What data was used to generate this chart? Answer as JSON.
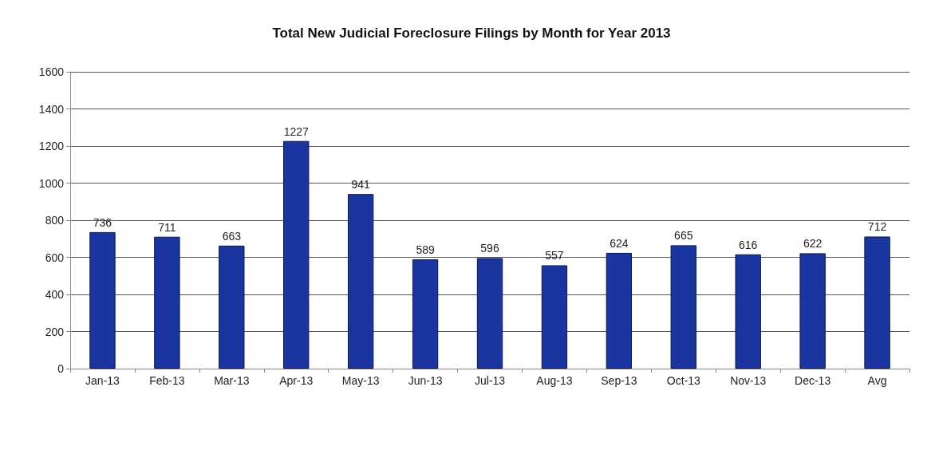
{
  "chart_data": {
    "type": "bar",
    "title": "Total New Judicial Foreclosure Filings by Month for Year 2013",
    "categories": [
      "Jan-13",
      "Feb-13",
      "Mar-13",
      "Apr-13",
      "May-13",
      "Jun-13",
      "Jul-13",
      "Aug-13",
      "Sep-13",
      "Oct-13",
      "Nov-13",
      "Dec-13",
      "Avg"
    ],
    "values": [
      736,
      711,
      663,
      1227,
      941,
      589,
      596,
      557,
      624,
      665,
      616,
      622,
      712
    ],
    "color": "#1a35a0",
    "ylim": [
      0,
      1600
    ],
    "yticks": [
      0,
      200,
      400,
      600,
      800,
      1000,
      1200,
      1400,
      1600
    ],
    "grid": "y",
    "data_labels": true
  }
}
